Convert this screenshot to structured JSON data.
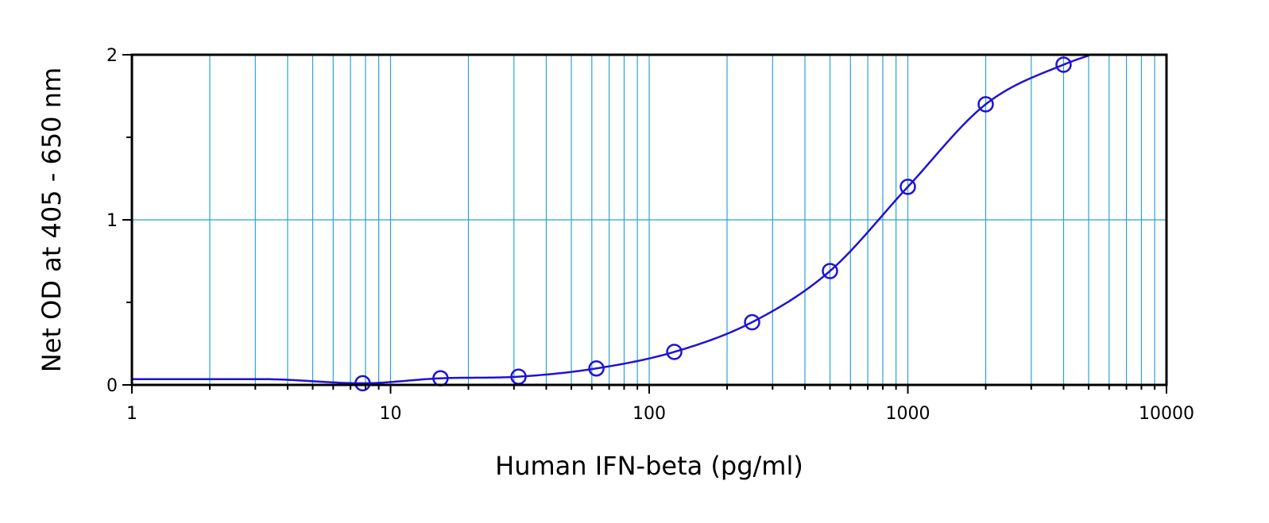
{
  "chart_data": {
    "type": "scatter",
    "title": "",
    "xlabel": "Human IFN-beta (pg/ml)",
    "ylabel": "Net OD at 405 - 650 nm",
    "x_scale": "log",
    "xlim": [
      1,
      10000
    ],
    "ylim": [
      0,
      2
    ],
    "x_ticks": [
      {
        "value": 1,
        "label": "1"
      },
      {
        "value": 10,
        "label": "10"
      },
      {
        "value": 100,
        "label": "100"
      },
      {
        "value": 1000,
        "label": "1000"
      },
      {
        "value": 10000,
        "label": "10000"
      }
    ],
    "y_ticks": [
      {
        "value": 0,
        "label": "0"
      },
      {
        "value": 1,
        "label": "1"
      },
      {
        "value": 2,
        "label": "2"
      }
    ],
    "grid": true,
    "series": [
      {
        "points": [
          {
            "x": 7.8,
            "y": 0.01
          },
          {
            "x": 15.6,
            "y": 0.04
          },
          {
            "x": 31.25,
            "y": 0.05
          },
          {
            "x": 62.5,
            "y": 0.1
          },
          {
            "x": 125,
            "y": 0.2
          },
          {
            "x": 250,
            "y": 0.38
          },
          {
            "x": 500,
            "y": 0.69
          },
          {
            "x": 1000,
            "y": 1.2
          },
          {
            "x": 2000,
            "y": 1.7
          },
          {
            "x": 4000,
            "y": 1.94
          }
        ],
        "fit_curve": "four-parameter logistic",
        "marker": "open-circle",
        "color": "#1f12d6"
      }
    ],
    "colors": {
      "grid": "#29a3d6",
      "series": "#1f12d6",
      "axes": "#000000"
    }
  }
}
